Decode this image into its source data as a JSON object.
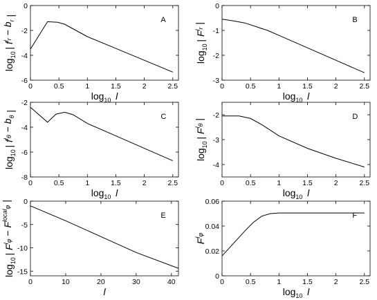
{
  "chart_data": [
    {
      "type": "line",
      "panel_label": "A",
      "ylabel": "log10| f^l_r − b_r |",
      "xlabel": "log10 l",
      "xlim": [
        0,
        2.6
      ],
      "ylim": [
        -6,
        0
      ],
      "xticks": [
        "0",
        "0.5",
        "1",
        "1.5",
        "2",
        "2.5"
      ],
      "xtick_values": [
        0,
        0.5,
        1,
        1.5,
        2,
        2.5
      ],
      "yticks": [
        "-6",
        "-4",
        "-2",
        "0"
      ],
      "ytick_values": [
        -6,
        -4,
        -2,
        0
      ],
      "x": [
        0,
        0.3,
        0.48,
        0.6,
        0.8,
        1.0,
        1.5,
        2.0,
        2.5
      ],
      "y": [
        -3.5,
        -1.3,
        -1.35,
        -1.5,
        -2.0,
        -2.5,
        -3.45,
        -4.4,
        -5.35
      ]
    },
    {
      "type": "line",
      "panel_label": "B",
      "ylabel": "log10| F^l_r |",
      "xlabel": "log10 l",
      "xlim": [
        0,
        2.6
      ],
      "ylim": [
        -3,
        0
      ],
      "xticks": [
        "0",
        "0.5",
        "1",
        "1.5",
        "2",
        "2.5"
      ],
      "xtick_values": [
        0,
        0.5,
        1,
        1.5,
        2,
        2.5
      ],
      "yticks": [
        "-3",
        "-2",
        "-1",
        "0"
      ],
      "ytick_values": [
        -3,
        -2,
        -1,
        0
      ],
      "x": [
        0,
        0.2,
        0.4,
        0.6,
        0.8,
        1.0,
        1.5,
        2.0,
        2.5
      ],
      "y": [
        -0.55,
        -0.62,
        -0.7,
        -0.85,
        -1.0,
        -1.2,
        -1.7,
        -2.2,
        -2.7
      ]
    },
    {
      "type": "line",
      "panel_label": "C",
      "ylabel": "log10| f^l_θ − b_θ |",
      "xlabel": "log10 l",
      "xlim": [
        0,
        2.6
      ],
      "ylim": [
        -8,
        -2
      ],
      "xticks": [
        "0",
        "0.5",
        "1",
        "1.5",
        "2",
        "2.5"
      ],
      "xtick_values": [
        0,
        0.5,
        1,
        1.5,
        2,
        2.5
      ],
      "yticks": [
        "-8",
        "-6",
        "-4",
        "-2"
      ],
      "ytick_values": [
        -8,
        -6,
        -4,
        -2
      ],
      "x": [
        0,
        0.3,
        0.45,
        0.6,
        0.75,
        1.0,
        1.5,
        2.0,
        2.5
      ],
      "y": [
        -2.4,
        -3.6,
        -2.95,
        -2.8,
        -3.0,
        -3.7,
        -4.7,
        -5.7,
        -6.7
      ]
    },
    {
      "type": "line",
      "panel_label": "D",
      "ylabel": "log10| F^l_θ |",
      "xlabel": "log10 l",
      "xlim": [
        0,
        2.6
      ],
      "ylim": [
        -4.5,
        -1.5
      ],
      "xticks": [
        "0",
        "0.5",
        "1",
        "1.5",
        "2",
        "2.5"
      ],
      "xtick_values": [
        0,
        0.5,
        1,
        1.5,
        2,
        2.5
      ],
      "yticks": [
        "-4",
        "-3",
        "-2"
      ],
      "ytick_values": [
        -4,
        -3,
        -2
      ],
      "x": [
        0,
        0.3,
        0.5,
        0.7,
        1.0,
        1.5,
        2.0,
        2.5
      ],
      "y": [
        -2.05,
        -2.05,
        -2.15,
        -2.4,
        -2.85,
        -3.35,
        -3.75,
        -4.1
      ]
    },
    {
      "type": "line",
      "panel_label": "E",
      "ylabel": "log10| F^l_φ − F^local_φ |",
      "xlabel": "l",
      "xlim": [
        0,
        42
      ],
      "ylim": [
        -16,
        0
      ],
      "xticks": [
        "0",
        "10",
        "20",
        "30",
        "40"
      ],
      "xtick_values": [
        0,
        10,
        20,
        30,
        40
      ],
      "yticks": [
        "-15",
        "-10",
        "-5",
        "0"
      ],
      "ytick_values": [
        -15,
        -10,
        -5,
        0
      ],
      "x": [
        0,
        10,
        20,
        30,
        42
      ],
      "y": [
        -1.0,
        -4.2,
        -7.6,
        -11.0,
        -14.4
      ]
    },
    {
      "type": "line",
      "panel_label": "F",
      "ylabel": "F^l_φ",
      "xlabel": "log10 l",
      "xlim": [
        0,
        2.6
      ],
      "ylim": [
        0,
        0.06
      ],
      "xticks": [
        "0",
        "0.5",
        "1",
        "1.5",
        "2",
        "2.5"
      ],
      "xtick_values": [
        0,
        0.5,
        1,
        1.5,
        2,
        2.5
      ],
      "yticks": [
        "0",
        "0.02",
        "0.04",
        "0.06"
      ],
      "ytick_values": [
        0,
        0.02,
        0.04,
        0.06
      ],
      "x": [
        0,
        0.2,
        0.4,
        0.55,
        0.7,
        0.85,
        1.0,
        1.5,
        2.0,
        2.5
      ],
      "y": [
        0.016,
        0.026,
        0.036,
        0.043,
        0.048,
        0.05,
        0.0505,
        0.0505,
        0.0505,
        0.0505
      ]
    }
  ]
}
